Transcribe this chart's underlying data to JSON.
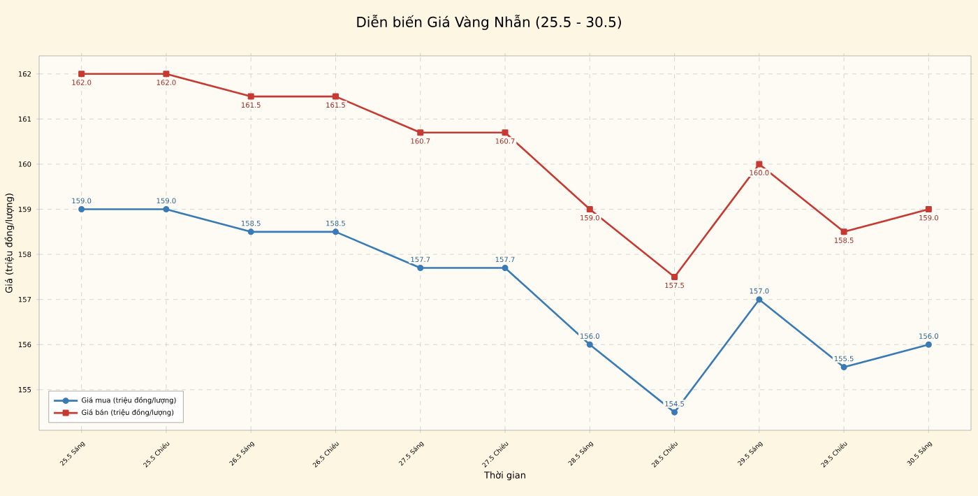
{
  "chart_data": {
    "type": "line",
    "title": "Diễn biến Giá Vàng Nhẫn (25.5 - 30.5)",
    "xlabel": "Thời gian",
    "ylabel": "Giá (triệu đồng/lượng)",
    "categories": [
      "25.5 Sáng",
      "25.5 Chiều",
      "26.5 Sáng",
      "26.5 Chiều",
      "27.5 Sáng",
      "27.5 Chiều",
      "28.5 Sáng",
      "28.5 Chiều",
      "29.5 Sáng",
      "29.5 Chiều",
      "30.5 Sáng"
    ],
    "series": [
      {
        "name": "Giá mua (triệu đồng/lượng)",
        "color": "#3a7ab5",
        "marker": "circle",
        "values": [
          159,
          159,
          158.5,
          158.5,
          157.7,
          157.7,
          156,
          154.5,
          157,
          155.5,
          156
        ],
        "value_labels": [
          "159.0",
          "159.0",
          "158.5",
          "158.5",
          "157.7",
          "157.7",
          "156.0",
          "154.5",
          "157.0",
          "155.5",
          "156.0"
        ]
      },
      {
        "name": "Giá bán (triệu đồng/lượng)",
        "color": "#c53a32",
        "marker": "square",
        "values": [
          162,
          162,
          161.5,
          161.5,
          160.7,
          160.7,
          159,
          157.5,
          160,
          158.5,
          159
        ],
        "value_labels": [
          "162.0",
          "162.0",
          "161.5",
          "161.5",
          "160.7",
          "160.7",
          "159.0",
          "157.5",
          "160.0",
          "158.5",
          "159.0"
        ]
      }
    ],
    "ylim": [
      154.1,
      162.4
    ],
    "yticks": [
      155,
      156,
      157,
      158,
      159,
      160,
      161,
      162
    ],
    "grid": true,
    "legend": "bottom left",
    "line_style": "solid"
  }
}
